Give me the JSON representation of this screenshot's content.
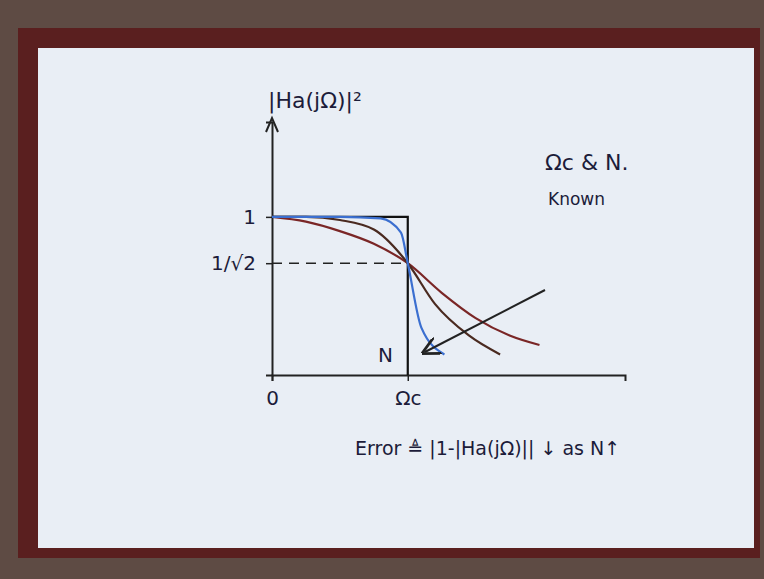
{
  "chart_data": {
    "type": "line",
    "y_label": "|Ha(jΩ)|²",
    "xlim": [
      0,
      2.6
    ],
    "ylim": [
      0,
      1.6
    ],
    "xticks": [
      0,
      {
        "value": 1,
        "label": "Ωc"
      }
    ],
    "yticks": [
      {
        "value": 0.7071,
        "label": "1/√2"
      },
      1
    ],
    "grid": false,
    "tick_labels": true,
    "series": [
      {
        "color": "#111111",
        "line_style": "solid",
        "x": [
          0,
          1,
          1
        ],
        "values": [
          1,
          1,
          0
        ]
      },
      {
        "color": "#7a2626",
        "line_style": "solid",
        "x": [
          0,
          0.25,
          0.5,
          0.75,
          1,
          1.25,
          1.5,
          1.75,
          1.97
        ],
        "values": [
          1,
          0.97,
          0.91,
          0.83,
          0.707,
          0.52,
          0.36,
          0.25,
          0.19
        ]
      },
      {
        "color": "#4a2a20",
        "line_style": "solid",
        "x": [
          0,
          0.25,
          0.5,
          0.75,
          1,
          1.2,
          1.45,
          1.68
        ],
        "values": [
          1,
          1,
          0.98,
          0.92,
          0.707,
          0.45,
          0.25,
          0.13
        ]
      },
      {
        "color": "#3b6fd0",
        "line_style": "solid",
        "x": [
          0,
          0.5,
          0.8,
          0.95,
          1,
          1.1,
          1.27
        ],
        "values": [
          1,
          1,
          0.99,
          0.9,
          0.707,
          0.3,
          0.13
        ]
      }
    ],
    "annotations": [
      {
        "text": "Ωc & N."
      },
      {
        "text": "Known"
      },
      {
        "text": "N"
      },
      {
        "text": "Error ≜ |1-|Ha(jΩ)|| ↓ as N↑"
      }
    ]
  }
}
